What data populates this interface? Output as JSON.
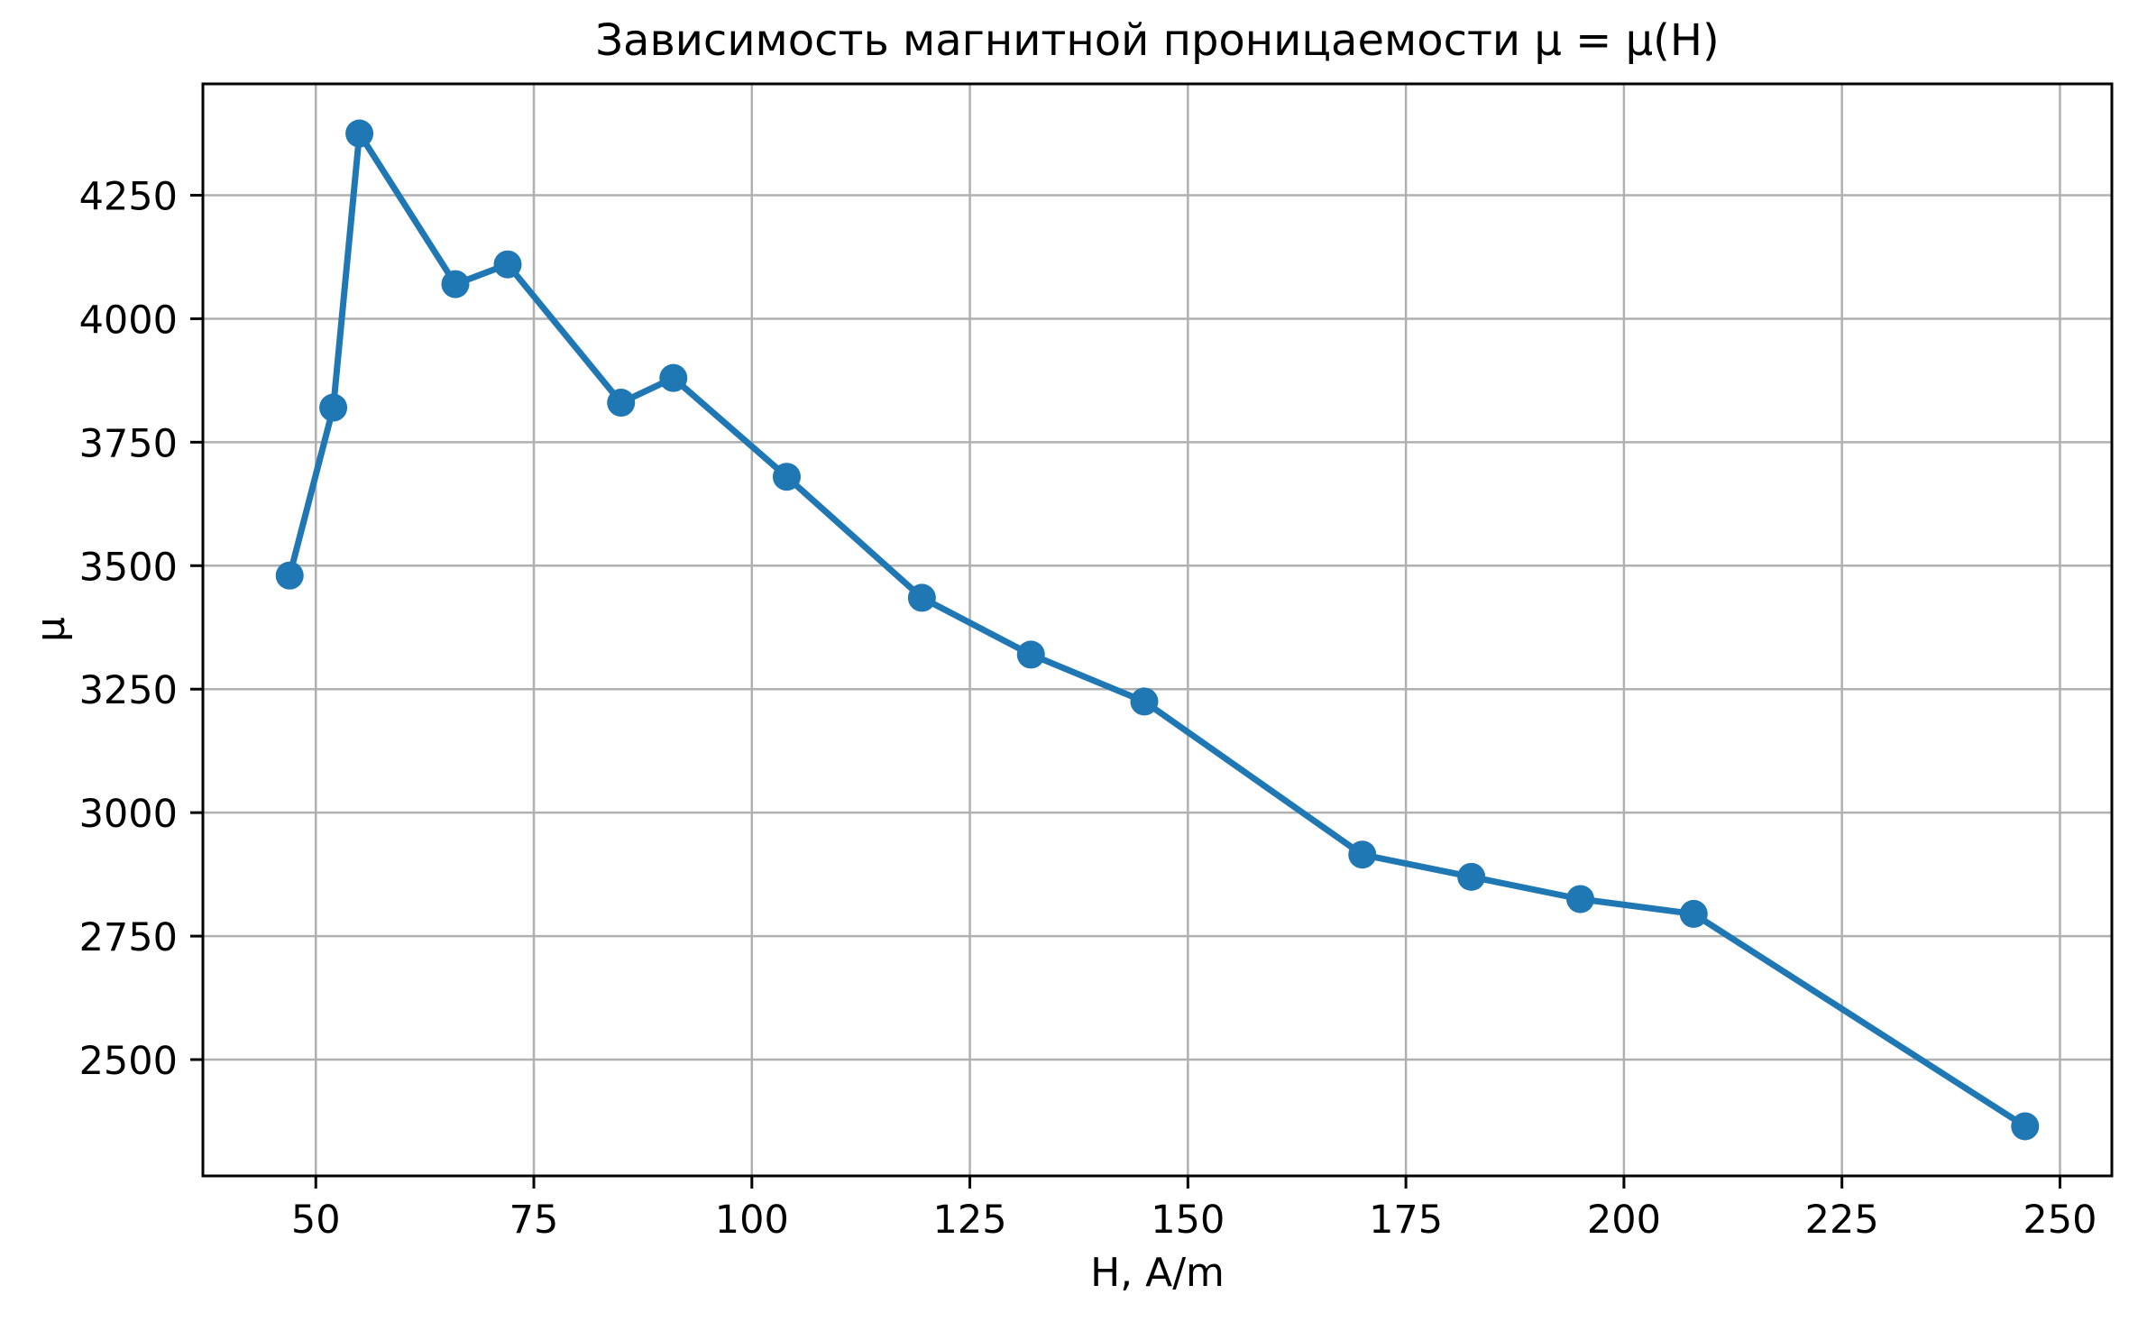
{
  "chart_data": {
    "type": "line",
    "title": "Зависимость магнитной проницаемости μ = μ(H)",
    "xlabel": "H, A/m",
    "ylabel": "μ",
    "series": [
      {
        "name": "μ(H)",
        "x": [
          47,
          52,
          55,
          66,
          72,
          85,
          91,
          104,
          119.5,
          132,
          145,
          170,
          182.5,
          195,
          208,
          246
        ],
        "y": [
          3480,
          3820,
          4375,
          4070,
          4110,
          3830,
          3880,
          3680,
          3435,
          3320,
          3225,
          2915,
          2870,
          2825,
          2795,
          2365
        ]
      }
    ],
    "xticks": [
      50,
      75,
      100,
      125,
      150,
      175,
      200,
      225,
      250
    ],
    "yticks": [
      2500,
      2750,
      3000,
      3250,
      3500,
      3750,
      4000,
      4250
    ],
    "xlim": [
      37.05,
      255.95
    ],
    "ylim": [
      2264.5,
      4475.5
    ],
    "grid": true,
    "legend_position": "none",
    "colors": {
      "line": "#1f77b4",
      "marker": "#1f77b4",
      "grid": "#b0b0b0",
      "spine": "#000000",
      "background": "#ffffff",
      "text": "#000000"
    }
  }
}
